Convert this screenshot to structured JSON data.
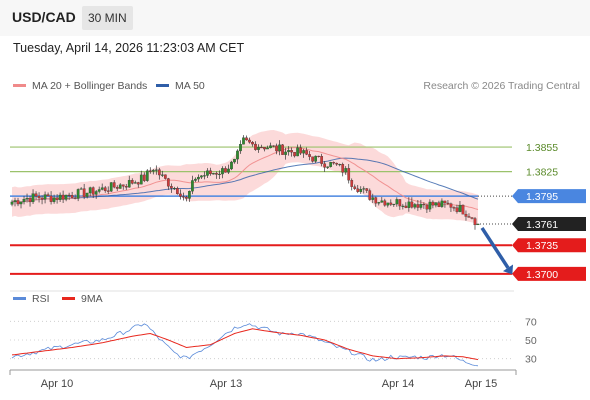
{
  "header": {
    "pair": "USD/CAD",
    "timeframe": "30 MIN"
  },
  "datetime": "Tuesday, April 14, 2026 11:23:03 AM CET",
  "legend_main": [
    {
      "label": "MA 20 + Bollinger Bands",
      "color": "#f08a8a"
    },
    {
      "label": "MA 50",
      "color": "#2f5ea8"
    }
  ],
  "legend_rsi": [
    {
      "label": "RSI",
      "color": "#5b8bd9"
    },
    {
      "label": "9MA",
      "color": "#e8281e"
    }
  ],
  "research": "Research © 2026 Trading Central",
  "colors": {
    "candle_up": "#2e8b2e",
    "candle_down": "#d03a3a",
    "bollinger": "#fbd4d4",
    "ma20": "#f08a8a",
    "ma50": "#2f5ea8",
    "resistance": "#9bc26b",
    "current": "#4a86e0",
    "support": "#e41c1c",
    "last": "#222222",
    "arrow": "#2f5ea8"
  },
  "chart_data": [
    {
      "type": "candlestick",
      "x_labels": [
        "Apr 10",
        "Apr 13",
        "Apr 14",
        "Apr 15"
      ],
      "ylim": [
        1.369,
        1.3915
      ],
      "price_path": [
        [
          0,
          1.3788
        ],
        [
          4,
          1.3792
        ],
        [
          8,
          1.3794
        ],
        [
          14,
          1.3793
        ],
        [
          20,
          1.3797
        ],
        [
          26,
          1.38
        ],
        [
          32,
          1.3805
        ],
        [
          38,
          1.381
        ],
        [
          44,
          1.3817
        ],
        [
          47,
          1.383
        ],
        [
          50,
          1.3818
        ],
        [
          53,
          1.3808
        ],
        [
          56,
          1.38
        ],
        [
          58,
          1.379
        ],
        [
          61,
          1.3818
        ],
        [
          65,
          1.3822
        ],
        [
          70,
          1.3826
        ],
        [
          74,
          1.3836
        ],
        [
          77,
          1.3862
        ],
        [
          80,
          1.3858
        ],
        [
          84,
          1.3856
        ],
        [
          88,
          1.3853
        ],
        [
          92,
          1.385
        ],
        [
          96,
          1.3848
        ],
        [
          100,
          1.3842
        ],
        [
          104,
          1.3836
        ],
        [
          108,
          1.3832
        ],
        [
          111,
          1.3825
        ],
        [
          113,
          1.3812
        ],
        [
          116,
          1.3803
        ],
        [
          119,
          1.3795
        ],
        [
          122,
          1.379
        ],
        [
          126,
          1.3788
        ],
        [
          130,
          1.3787
        ],
        [
          134,
          1.3786
        ],
        [
          138,
          1.3785
        ],
        [
          142,
          1.3784
        ],
        [
          146,
          1.3784
        ],
        [
          150,
          1.3778
        ],
        [
          153,
          1.377
        ],
        [
          155,
          1.3761
        ]
      ],
      "lines": [
        {
          "label": "1.3855",
          "value": 1.3855,
          "role": "resistance"
        },
        {
          "label": "1.3825",
          "value": 1.3825,
          "role": "resistance"
        },
        {
          "label": "1.3795",
          "value": 1.3795,
          "role": "current"
        },
        {
          "label": "1.3761",
          "value": 1.3761,
          "role": "last"
        },
        {
          "label": "1.3735",
          "value": 1.3735,
          "role": "support"
        },
        {
          "label": "1.3700",
          "value": 1.37,
          "role": "support"
        }
      ],
      "projection": {
        "from": 1.3761,
        "to": 1.37,
        "direction": "down"
      }
    },
    {
      "type": "line",
      "ylim": [
        20,
        80
      ],
      "y_ticks": [
        "70",
        "50",
        "30"
      ],
      "rsi_path": [
        [
          0,
          32
        ],
        [
          6,
          36
        ],
        [
          12,
          40
        ],
        [
          18,
          44
        ],
        [
          24,
          47
        ],
        [
          30,
          50
        ],
        [
          36,
          57
        ],
        [
          40,
          62
        ],
        [
          44,
          68
        ],
        [
          47,
          58
        ],
        [
          50,
          48
        ],
        [
          54,
          36
        ],
        [
          58,
          30
        ],
        [
          62,
          38
        ],
        [
          66,
          45
        ],
        [
          70,
          55
        ],
        [
          74,
          63
        ],
        [
          78,
          68
        ],
        [
          82,
          64
        ],
        [
          86,
          60
        ],
        [
          90,
          56
        ],
        [
          94,
          58
        ],
        [
          98,
          55
        ],
        [
          102,
          50
        ],
        [
          106,
          45
        ],
        [
          110,
          40
        ],
        [
          114,
          36
        ],
        [
          118,
          30
        ],
        [
          122,
          28
        ],
        [
          126,
          32
        ],
        [
          130,
          31
        ],
        [
          134,
          32
        ],
        [
          138,
          31
        ],
        [
          142,
          34
        ],
        [
          146,
          33
        ],
        [
          150,
          27
        ],
        [
          155,
          24
        ]
      ],
      "ma9_path": [
        [
          0,
          34
        ],
        [
          10,
          38
        ],
        [
          20,
          42
        ],
        [
          30,
          47
        ],
        [
          40,
          54
        ],
        [
          46,
          57
        ],
        [
          52,
          50
        ],
        [
          58,
          42
        ],
        [
          66,
          45
        ],
        [
          74,
          57
        ],
        [
          80,
          62
        ],
        [
          88,
          58
        ],
        [
          96,
          55
        ],
        [
          104,
          50
        ],
        [
          112,
          40
        ],
        [
          120,
          33
        ],
        [
          128,
          30
        ],
        [
          136,
          31
        ],
        [
          144,
          33
        ],
        [
          150,
          32
        ],
        [
          155,
          29
        ]
      ]
    }
  ]
}
